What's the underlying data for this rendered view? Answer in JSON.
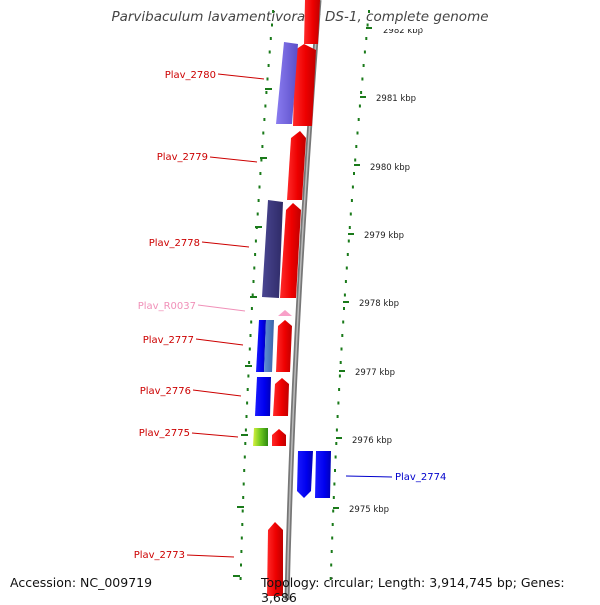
{
  "title": "Parvibaculum lavamentivorans DS-1, complete genome",
  "footer": {
    "accession": "Accession: NC_009719",
    "topology": "Topology: circular; Length: 3,914,745 bp; Genes: 3,686"
  },
  "ruler": {
    "unit": "kbp",
    "ticks": [
      "2982 kbp",
      "2981 kbp",
      "2980 kbp",
      "2979 kbp",
      "2978 kbp",
      "2977 kbp",
      "2976 kbp",
      "2975 kbp"
    ]
  },
  "genes": [
    {
      "label": "Plav_2780",
      "color": "#cc0000"
    },
    {
      "label": "Plav_2779",
      "color": "#cc0000"
    },
    {
      "label": "Plav_2778",
      "color": "#cc0000"
    },
    {
      "label": "Plav_R0037",
      "color": "#f090b8"
    },
    {
      "label": "Plav_2777",
      "color": "#cc0000"
    },
    {
      "label": "Plav_2776",
      "color": "#cc0000"
    },
    {
      "label": "Plav_2775",
      "color": "#cc0000"
    },
    {
      "label": "Plav_2774",
      "color": "#0000cc"
    },
    {
      "label": "Plav_2773",
      "color": "#cc0000"
    }
  ],
  "colors": {
    "forward_gene": "#ff0000",
    "reverse_gene": "#0000ff",
    "backbone": "#888888",
    "tick": "#1a7a1a"
  }
}
